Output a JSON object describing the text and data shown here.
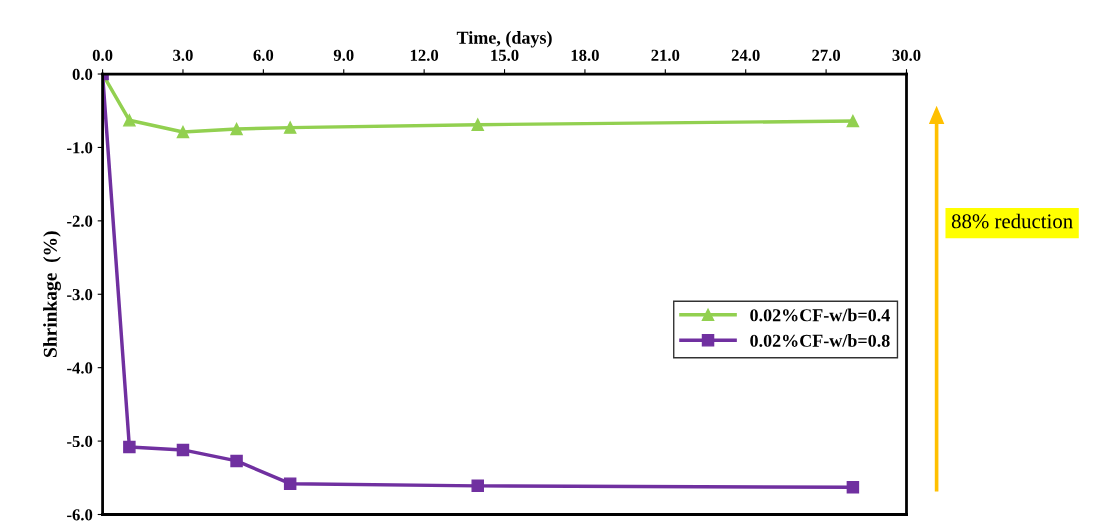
{
  "chart_data": {
    "type": "line",
    "xlabel": "Time, (days)",
    "ylabel": "Shrinkage  (%)",
    "xlim": [
      0,
      30
    ],
    "xticks": [
      {
        "value": 0,
        "label": "0.0"
      },
      {
        "value": 3,
        "label": "3.0"
      },
      {
        "value": 6,
        "label": "6.0"
      },
      {
        "value": 9,
        "label": "9.0"
      },
      {
        "value": 12,
        "label": "12.0"
      },
      {
        "value": 15,
        "label": "15.0"
      },
      {
        "value": 18,
        "label": "18.0"
      },
      {
        "value": 21,
        "label": "21.0"
      },
      {
        "value": 24,
        "label": "24.0"
      },
      {
        "value": 27,
        "label": "27.0"
      },
      {
        "value": 30,
        "label": "30.0"
      }
    ],
    "ylim": [
      -6,
      0
    ],
    "yticks": [
      {
        "value": 0,
        "label": "0.0"
      },
      {
        "value": -1,
        "label": "-1.0"
      },
      {
        "value": -2,
        "label": "-2.0"
      },
      {
        "value": -3,
        "label": "-3.0"
      },
      {
        "value": -4,
        "label": "-4.0"
      },
      {
        "value": -5,
        "label": "-5.0"
      },
      {
        "value": -6,
        "label": "-6.0"
      }
    ],
    "x": [
      0,
      1,
      3,
      5,
      7,
      14,
      28
    ],
    "series": [
      {
        "name": "0.02%CF-w/b=0.4",
        "color": "#92d050",
        "marker": "triangle",
        "values": [
          0,
          -0.63,
          -0.79,
          -0.75,
          -0.73,
          -0.69,
          -0.64
        ]
      },
      {
        "name": "0.02%CF-w/b=0.8",
        "color": "#7030a0",
        "marker": "square",
        "values": [
          0,
          -5.08,
          -5.12,
          -5.27,
          -5.58,
          -5.61,
          -5.63
        ]
      }
    ],
    "grid": false,
    "legend": "right",
    "line_style": "solid",
    "annotations": [
      "88% reduction"
    ]
  }
}
